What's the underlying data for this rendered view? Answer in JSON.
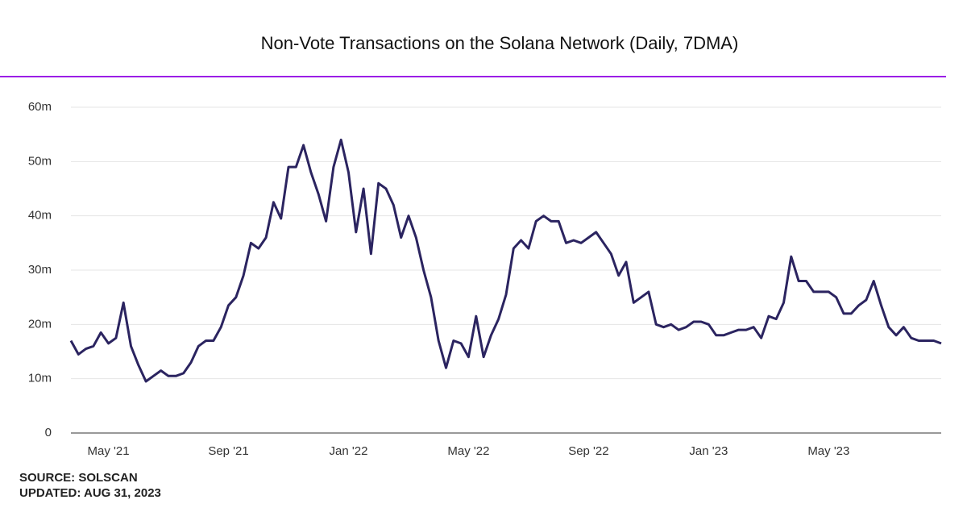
{
  "chart_data": {
    "type": "line",
    "title": "Non-Vote Transactions on the Solana Network (Daily, 7DMA)",
    "categories": [
      null,
      null,
      null,
      null,
      null,
      "May '21",
      null,
      null,
      null,
      null,
      null,
      null,
      null,
      null,
      null,
      null,
      null,
      null,
      null,
      null,
      null,
      "Sep '21",
      null,
      null,
      null,
      null,
      null,
      null,
      null,
      null,
      null,
      null,
      null,
      null,
      null,
      null,
      null,
      "Jan '22",
      null,
      null,
      null,
      null,
      null,
      null,
      null,
      null,
      null,
      null,
      null,
      null,
      null,
      null,
      null,
      "May '22",
      null,
      null,
      null,
      null,
      null,
      null,
      null,
      null,
      null,
      null,
      null,
      null,
      null,
      null,
      null,
      "Sep '22",
      null,
      null,
      null,
      null,
      null,
      null,
      null,
      null,
      null,
      null,
      null,
      null,
      null,
      null,
      null,
      "Jan '23",
      null,
      null,
      null,
      null,
      null,
      null,
      null,
      null,
      null,
      null,
      null,
      null,
      null,
      null,
      null,
      "May '23",
      null,
      null,
      null,
      null,
      null,
      null,
      null,
      null,
      null,
      null,
      null,
      null,
      null,
      null,
      null
    ],
    "values": [
      17,
      14.5,
      15.5,
      16,
      18.5,
      16.5,
      17.5,
      24,
      16,
      12.5,
      9.5,
      10.5,
      11.5,
      10.5,
      10.5,
      11,
      13,
      16,
      17,
      17,
      19.5,
      23.5,
      25,
      29,
      35,
      34,
      36,
      42.5,
      39.5,
      49,
      49,
      53,
      48,
      44,
      39,
      49,
      54,
      48,
      37,
      45,
      33,
      46,
      45,
      42,
      36,
      40,
      36,
      30,
      25,
      17,
      12,
      17,
      16.5,
      14,
      21.5,
      14,
      18,
      21,
      25.5,
      34,
      35.5,
      34,
      39,
      40,
      39,
      39,
      35,
      35.5,
      35,
      36,
      37,
      35,
      33,
      29,
      31.5,
      24,
      25,
      26,
      20,
      19.5,
      20,
      19,
      19.5,
      20.5,
      20.5,
      20,
      18,
      18,
      18.5,
      19,
      19,
      19.5,
      17.5,
      21.5,
      21,
      24,
      32.5,
      28,
      28,
      26,
      26,
      26,
      25,
      22,
      22,
      23.5,
      24.5,
      28,
      23.5,
      19.5,
      18,
      19.5,
      17.5,
      17,
      17,
      17,
      16.5
    ],
    "color": "#2b2460",
    "ylim": [
      0,
      60
    ],
    "yticks": [
      0,
      {
        "value": 10,
        "label": "10m"
      },
      {
        "value": 20,
        "label": "20m"
      },
      {
        "value": 30,
        "label": "30m"
      },
      {
        "value": 40,
        "label": "40m"
      },
      {
        "value": 50,
        "label": "50m"
      },
      {
        "value": 60,
        "label": "60m"
      }
    ],
    "grid": true,
    "source": "SOURCE: SOLSCAN",
    "updated": "UPDATED: AUG 31, 2023"
  }
}
